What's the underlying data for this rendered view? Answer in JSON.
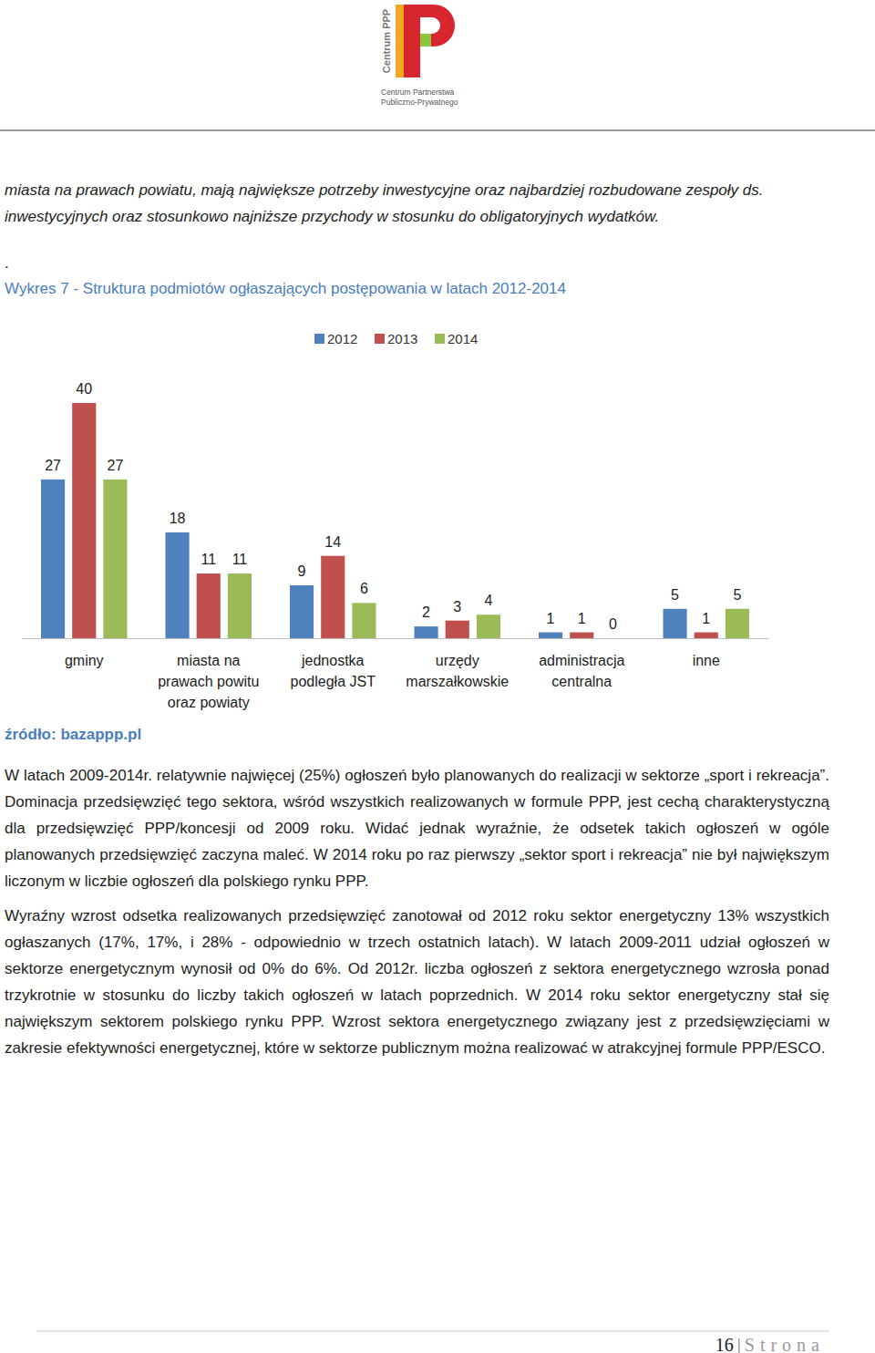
{
  "header": {
    "logo_vertical": "Centrum PPP",
    "logo_lines": [
      "Centrum Partnerstwa",
      "Publiczno-Prywatnego"
    ]
  },
  "intro_lines": [
    "miasta na prawach powiatu, mają największe potrzeby inwestycyjne oraz najbardziej rozbudowane zespoły ds.",
    "inwestycyjnych oraz stosunkowo najniższe przychody w stosunku do obligatoryjnych wydatków."
  ],
  "stray": ".",
  "chart_data": {
    "type": "bar",
    "title": "Wykres 7 - Struktura podmiotów ogłaszających postępowania w latach 2012-2014",
    "categories": [
      "gminy",
      "miasta na\nprawach powitu\noraz powiaty",
      "jednostka\npodległa JST",
      "urzędy\nmarszałkowskie",
      "administracja\ncentralna",
      "inne"
    ],
    "series": [
      {
        "name": "2012",
        "color": "#4f81bd",
        "values": [
          27,
          18,
          9,
          2,
          1,
          5
        ]
      },
      {
        "name": "2013",
        "color": "#c0504d",
        "values": [
          40,
          11,
          14,
          3,
          1,
          1
        ]
      },
      {
        "name": "2014",
        "color": "#9bbb59",
        "values": [
          27,
          11,
          6,
          4,
          0,
          5
        ]
      }
    ],
    "ylim": [
      0,
      40
    ],
    "tick_labels": "x",
    "data_labels": true,
    "legend": "top",
    "grid": false
  },
  "source": "źródło: bazappp.pl",
  "paragraphs": [
    "W latach 2009-2014r. relatywnie najwięcej (25%) ogłoszeń było planowanych do realizacji w sektorze „sport i rekreacja”. Dominacja przedsięwzięć tego sektora, wśród wszystkich realizowanych w formule PPP, jest cechą charakterystyczną dla przedsięwzięć PPP/koncesji od 2009 roku. Widać jednak wyraźnie, że odsetek takich ogłoszeń w ogóle planowanych przedsięwzięć zaczyna maleć. W 2014 roku po raz pierwszy „sektor sport i rekreacja” nie był największym liczonym w liczbie ogłoszeń dla polskiego rynku PPP.",
    "Wyraźny wzrost odsetka realizowanych przedsięwzięć zanotował od 2012 roku sektor energetyczny 13% wszystkich ogłaszanych (17%, 17%, i 28% - odpowiednio w trzech ostatnich latach). W latach 2009-2011 udział ogłoszeń w sektorze energetycznym wynosił od 0% do 6%. Od 2012r. liczba ogłoszeń z sektora energetycznego wzrosła ponad trzykrotnie w stosunku do liczby takich ogłoszeń w latach poprzednich. W 2014 roku sektor energetyczny stał się największym sektorem polskiego rynku PPP. Wzrost sektora energetycznego związany jest z przedsięwzięciami w zakresie efektywności energetycznej, które w sektorze publicznym można realizować w atrakcyjnej formule PPP/ESCO."
  ],
  "footer": {
    "page": "16",
    "separator": "|",
    "label": "Strona"
  }
}
